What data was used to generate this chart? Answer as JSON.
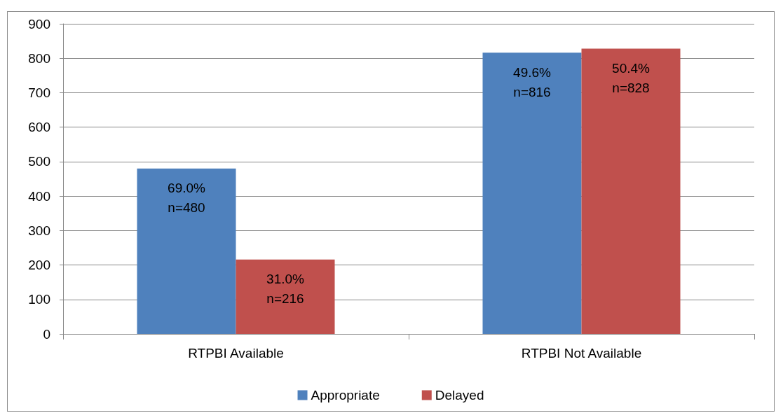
{
  "chart_data": {
    "type": "bar",
    "categories": [
      "RTPBI Available",
      "RTPBI Not Available"
    ],
    "series": [
      {
        "name": "Appropriate",
        "color": "#4f81bd",
        "values": [
          480,
          816
        ],
        "value_labels": [
          "69.0%\nn=480",
          "49.6%\nn=816"
        ]
      },
      {
        "name": "Delayed",
        "color": "#c0504d",
        "values": [
          216,
          828
        ],
        "value_labels": [
          "31.0%\nn=216",
          "50.4%\nn=828"
        ]
      }
    ],
    "ylim": [
      0,
      900
    ],
    "yticks": [
      0,
      100,
      200,
      300,
      400,
      500,
      600,
      700,
      800,
      900
    ],
    "grid": "y",
    "legend": "bottom"
  }
}
